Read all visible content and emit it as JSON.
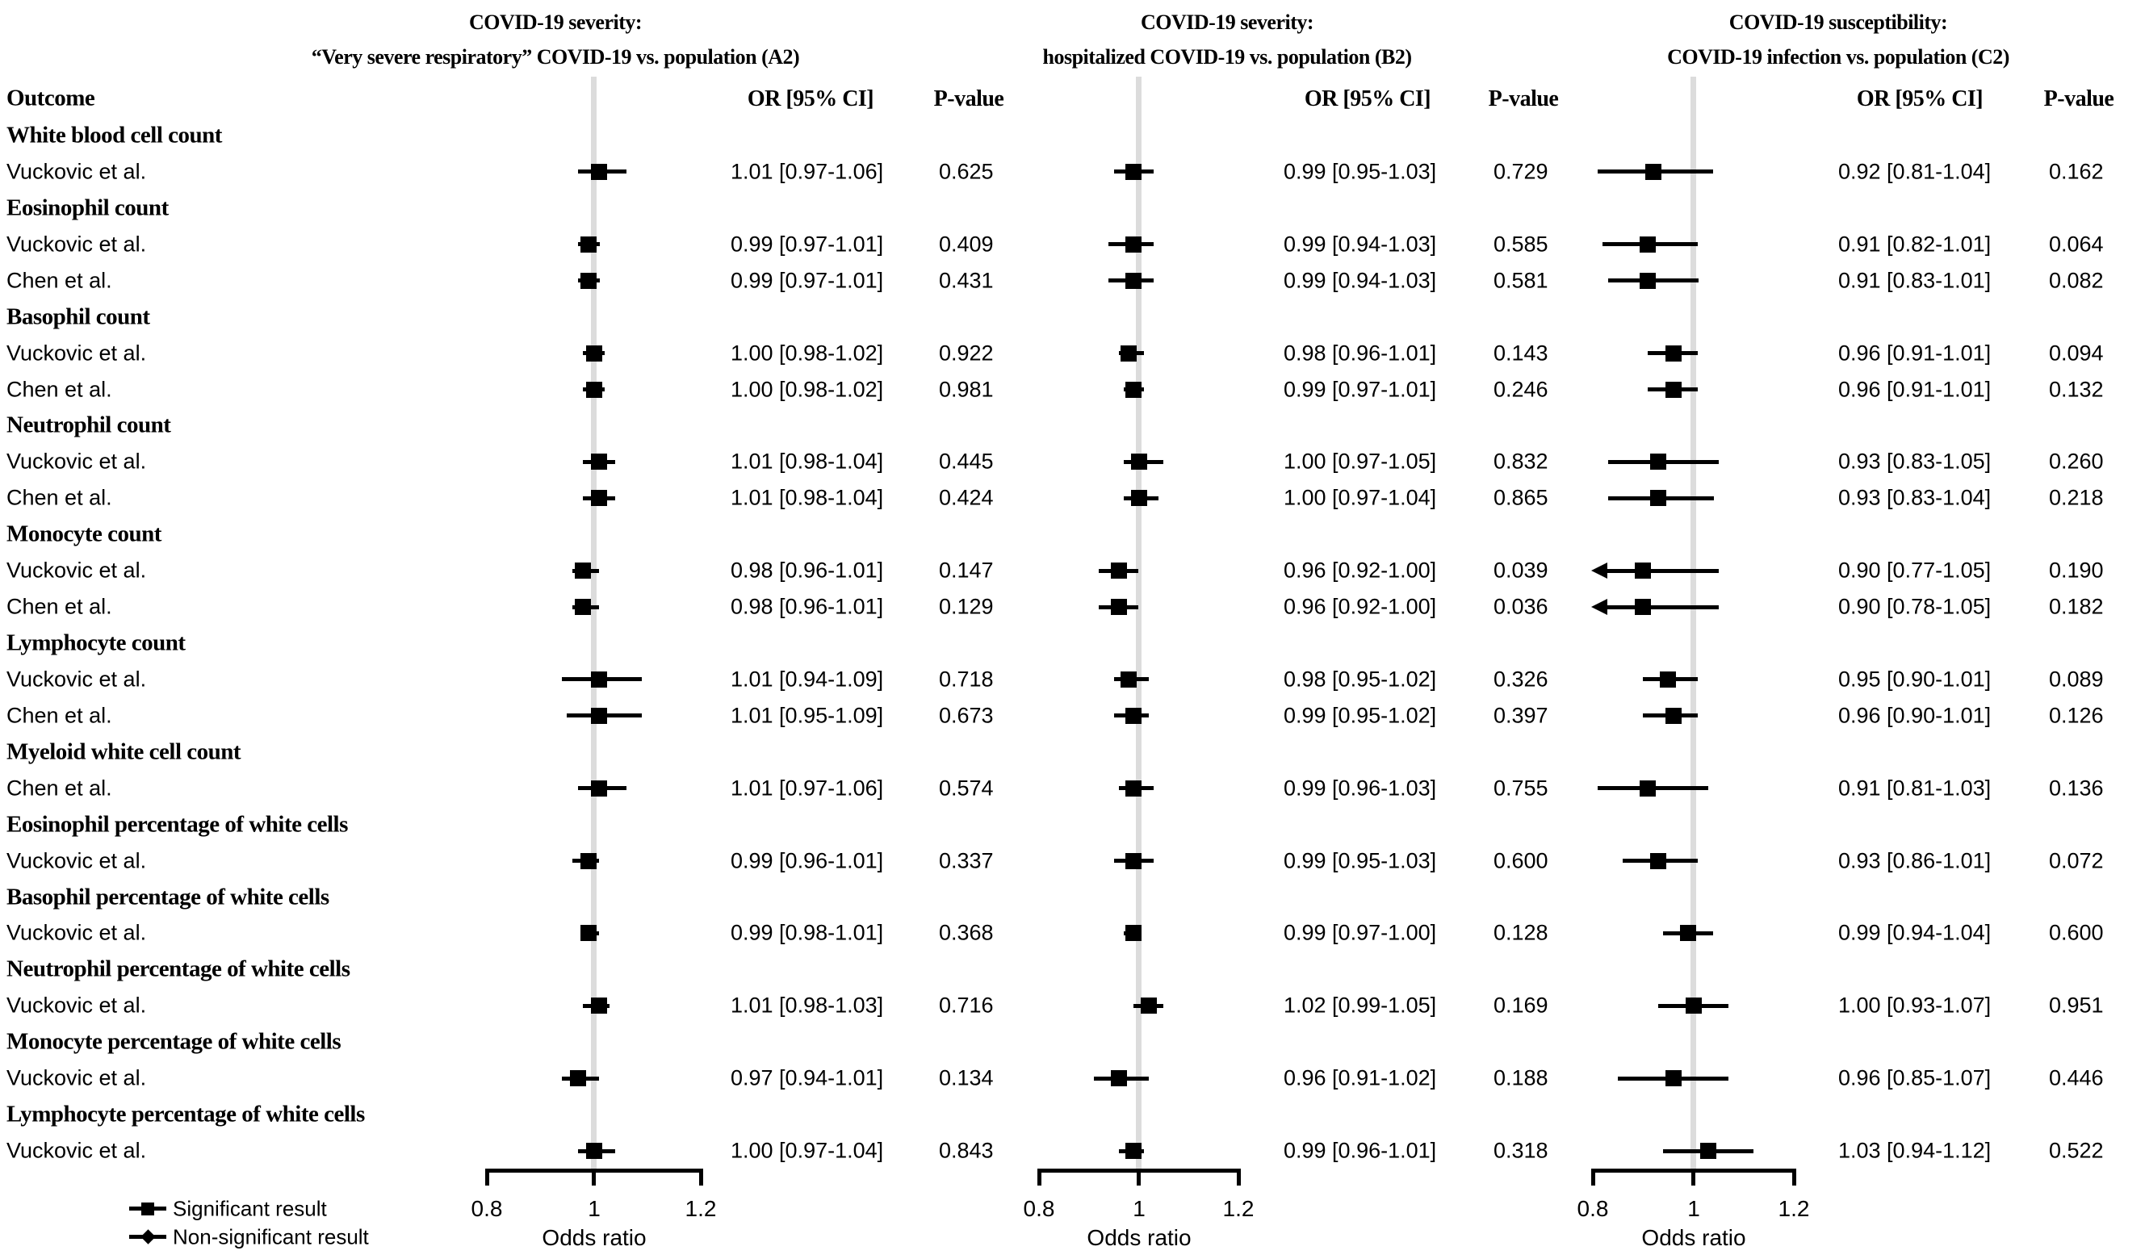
{
  "chart_data": {
    "type": "forest",
    "outcome_header": "Outcome",
    "or_header": "OR [95% CI]",
    "p_header": "P-value",
    "axis": {
      "label": "Odds ratio",
      "ticks": [
        "0.8",
        "1",
        "1.2"
      ],
      "range": [
        0.8,
        1.2
      ]
    },
    "colors": {
      "marker": "#000000",
      "reference_line": "#dcdcdc",
      "text": "#000000",
      "background": "#ffffff"
    },
    "legend": [
      {
        "marker": "square",
        "label": "Significant result"
      },
      {
        "marker": "diamond",
        "label": "Non-significant result"
      }
    ],
    "panels": [
      {
        "title1": "COVID-19 severity:",
        "title2": "“Very severe respiratory” COVID-19 vs. population (A2)"
      },
      {
        "title1": "COVID-19 severity:",
        "title2": "hospitalized COVID-19 vs. population (B2)"
      },
      {
        "title1": "COVID-19 susceptibility:",
        "title2": "COVID-19 infection vs. population (C2)"
      }
    ],
    "outcomes": [
      {
        "group": "White blood cell count",
        "studies": [
          {
            "study": "Vuckovic et al.",
            "results": [
              {
                "or_ci": "1.01 [0.97-1.06]",
                "p": "0.625",
                "est": 1.01,
                "lo": 0.97,
                "hi": 1.06
              },
              {
                "or_ci": "0.99 [0.95-1.03]",
                "p": "0.729",
                "est": 0.99,
                "lo": 0.95,
                "hi": 1.03
              },
              {
                "or_ci": "0.92 [0.81-1.04]",
                "p": "0.162",
                "est": 0.92,
                "lo": 0.81,
                "hi": 1.04
              }
            ]
          }
        ]
      },
      {
        "group": "Eosinophil count",
        "studies": [
          {
            "study": "Vuckovic et al.",
            "results": [
              {
                "or_ci": "0.99 [0.97-1.01]",
                "p": "0.409",
                "est": 0.99,
                "lo": 0.97,
                "hi": 1.01
              },
              {
                "or_ci": "0.99 [0.94-1.03]",
                "p": "0.585",
                "est": 0.99,
                "lo": 0.94,
                "hi": 1.03
              },
              {
                "or_ci": "0.91 [0.82-1.01]",
                "p": "0.064",
                "est": 0.91,
                "lo": 0.82,
                "hi": 1.01
              }
            ]
          },
          {
            "study": "Chen et al.",
            "results": [
              {
                "or_ci": "0.99 [0.97-1.01]",
                "p": "0.431",
                "est": 0.99,
                "lo": 0.97,
                "hi": 1.01
              },
              {
                "or_ci": "0.99 [0.94-1.03]",
                "p": "0.581",
                "est": 0.99,
                "lo": 0.94,
                "hi": 1.03
              },
              {
                "or_ci": "0.91 [0.83-1.01]",
                "p": "0.082",
                "est": 0.91,
                "lo": 0.83,
                "hi": 1.01
              }
            ]
          }
        ]
      },
      {
        "group": "Basophil count",
        "studies": [
          {
            "study": "Vuckovic et al.",
            "results": [
              {
                "or_ci": "1.00 [0.98-1.02]",
                "p": "0.922",
                "est": 1.0,
                "lo": 0.98,
                "hi": 1.02
              },
              {
                "or_ci": "0.98 [0.96-1.01]",
                "p": "0.143",
                "est": 0.98,
                "lo": 0.96,
                "hi": 1.01
              },
              {
                "or_ci": "0.96 [0.91-1.01]",
                "p": "0.094",
                "est": 0.96,
                "lo": 0.91,
                "hi": 1.01
              }
            ]
          },
          {
            "study": "Chen et al.",
            "results": [
              {
                "or_ci": "1.00 [0.98-1.02]",
                "p": "0.981",
                "est": 1.0,
                "lo": 0.98,
                "hi": 1.02
              },
              {
                "or_ci": "0.99 [0.97-1.01]",
                "p": "0.246",
                "est": 0.99,
                "lo": 0.97,
                "hi": 1.01
              },
              {
                "or_ci": "0.96 [0.91-1.01]",
                "p": "0.132",
                "est": 0.96,
                "lo": 0.91,
                "hi": 1.01
              }
            ]
          }
        ]
      },
      {
        "group": "Neutrophil count",
        "studies": [
          {
            "study": "Vuckovic et al.",
            "results": [
              {
                "or_ci": "1.01 [0.98-1.04]",
                "p": "0.445",
                "est": 1.01,
                "lo": 0.98,
                "hi": 1.04
              },
              {
                "or_ci": "1.00 [0.97-1.05]",
                "p": "0.832",
                "est": 1.0,
                "lo": 0.97,
                "hi": 1.05
              },
              {
                "or_ci": "0.93 [0.83-1.05]",
                "p": "0.260",
                "est": 0.93,
                "lo": 0.83,
                "hi": 1.05
              }
            ]
          },
          {
            "study": "Chen et al.",
            "results": [
              {
                "or_ci": "1.01 [0.98-1.04]",
                "p": "0.424",
                "est": 1.01,
                "lo": 0.98,
                "hi": 1.04
              },
              {
                "or_ci": "1.00 [0.97-1.04]",
                "p": "0.865",
                "est": 1.0,
                "lo": 0.97,
                "hi": 1.04
              },
              {
                "or_ci": "0.93 [0.83-1.04]",
                "p": "0.218",
                "est": 0.93,
                "lo": 0.83,
                "hi": 1.04
              }
            ]
          }
        ]
      },
      {
        "group": "Monocyte count",
        "studies": [
          {
            "study": "Vuckovic et al.",
            "results": [
              {
                "or_ci": "0.98 [0.96-1.01]",
                "p": "0.147",
                "est": 0.98,
                "lo": 0.96,
                "hi": 1.01
              },
              {
                "or_ci": "0.96 [0.92-1.00]",
                "p": "0.039",
                "est": 0.96,
                "lo": 0.92,
                "hi": 1.0
              },
              {
                "or_ci": "0.90 [0.77-1.05]",
                "p": "0.190",
                "est": 0.9,
                "lo": 0.77,
                "hi": 1.05
              }
            ]
          },
          {
            "study": "Chen et al.",
            "results": [
              {
                "or_ci": "0.98 [0.96-1.01]",
                "p": "0.129",
                "est": 0.98,
                "lo": 0.96,
                "hi": 1.01
              },
              {
                "or_ci": "0.96 [0.92-1.00]",
                "p": "0.036",
                "est": 0.96,
                "lo": 0.92,
                "hi": 1.0
              },
              {
                "or_ci": "0.90 [0.78-1.05]",
                "p": "0.182",
                "est": 0.9,
                "lo": 0.78,
                "hi": 1.05
              }
            ]
          }
        ]
      },
      {
        "group": "Lymphocyte count",
        "studies": [
          {
            "study": "Vuckovic et al.",
            "results": [
              {
                "or_ci": "1.01 [0.94-1.09]",
                "p": "0.718",
                "est": 1.01,
                "lo": 0.94,
                "hi": 1.09
              },
              {
                "or_ci": "0.98 [0.95-1.02]",
                "p": "0.326",
                "est": 0.98,
                "lo": 0.95,
                "hi": 1.02
              },
              {
                "or_ci": "0.95 [0.90-1.01]",
                "p": "0.089",
                "est": 0.95,
                "lo": 0.9,
                "hi": 1.01
              }
            ]
          },
          {
            "study": "Chen et al.",
            "results": [
              {
                "or_ci": "1.01 [0.95-1.09]",
                "p": "0.673",
                "est": 1.01,
                "lo": 0.95,
                "hi": 1.09
              },
              {
                "or_ci": "0.99 [0.95-1.02]",
                "p": "0.397",
                "est": 0.99,
                "lo": 0.95,
                "hi": 1.02
              },
              {
                "or_ci": "0.96 [0.90-1.01]",
                "p": "0.126",
                "est": 0.96,
                "lo": 0.9,
                "hi": 1.01
              }
            ]
          }
        ]
      },
      {
        "group": "Myeloid white cell count",
        "studies": [
          {
            "study": "Chen et al.",
            "results": [
              {
                "or_ci": "1.01 [0.97-1.06]",
                "p": "0.574",
                "est": 1.01,
                "lo": 0.97,
                "hi": 1.06
              },
              {
                "or_ci": "0.99 [0.96-1.03]",
                "p": "0.755",
                "est": 0.99,
                "lo": 0.96,
                "hi": 1.03
              },
              {
                "or_ci": "0.91 [0.81-1.03]",
                "p": "0.136",
                "est": 0.91,
                "lo": 0.81,
                "hi": 1.03
              }
            ]
          }
        ]
      },
      {
        "group": "Eosinophil percentage of white cells",
        "studies": [
          {
            "study": "Vuckovic et al.",
            "results": [
              {
                "or_ci": "0.99 [0.96-1.01]",
                "p": "0.337",
                "est": 0.99,
                "lo": 0.96,
                "hi": 1.01
              },
              {
                "or_ci": "0.99 [0.95-1.03]",
                "p": "0.600",
                "est": 0.99,
                "lo": 0.95,
                "hi": 1.03
              },
              {
                "or_ci": "0.93 [0.86-1.01]",
                "p": "0.072",
                "est": 0.93,
                "lo": 0.86,
                "hi": 1.01
              }
            ]
          }
        ]
      },
      {
        "group": "Basophil percentage of white cells",
        "studies": [
          {
            "study": "Vuckovic et al.",
            "results": [
              {
                "or_ci": "0.99 [0.98-1.01]",
                "p": "0.368",
                "est": 0.99,
                "lo": 0.98,
                "hi": 1.01
              },
              {
                "or_ci": "0.99 [0.97-1.00]",
                "p": "0.128",
                "est": 0.99,
                "lo": 0.97,
                "hi": 1.0
              },
              {
                "or_ci": "0.99 [0.94-1.04]",
                "p": "0.600",
                "est": 0.99,
                "lo": 0.94,
                "hi": 1.04
              }
            ]
          }
        ]
      },
      {
        "group": "Neutrophil percentage of white cells",
        "studies": [
          {
            "study": "Vuckovic et al.",
            "results": [
              {
                "or_ci": "1.01 [0.98-1.03]",
                "p": "0.716",
                "est": 1.01,
                "lo": 0.98,
                "hi": 1.03
              },
              {
                "or_ci": "1.02 [0.99-1.05]",
                "p": "0.169",
                "est": 1.02,
                "lo": 0.99,
                "hi": 1.05
              },
              {
                "or_ci": "1.00 [0.93-1.07]",
                "p": "0.951",
                "est": 1.0,
                "lo": 0.93,
                "hi": 1.07
              }
            ]
          }
        ]
      },
      {
        "group": "Monocyte percentage of white cells",
        "studies": [
          {
            "study": "Vuckovic et al.",
            "results": [
              {
                "or_ci": "0.97 [0.94-1.01]",
                "p": "0.134",
                "est": 0.97,
                "lo": 0.94,
                "hi": 1.01
              },
              {
                "or_ci": "0.96 [0.91-1.02]",
                "p": "0.188",
                "est": 0.96,
                "lo": 0.91,
                "hi": 1.02
              },
              {
                "or_ci": "0.96 [0.85-1.07]",
                "p": "0.446",
                "est": 0.96,
                "lo": 0.85,
                "hi": 1.07
              }
            ]
          }
        ]
      },
      {
        "group": "Lymphocyte percentage of white cells",
        "studies": [
          {
            "study": "Vuckovic et al.",
            "results": [
              {
                "or_ci": "1.00 [0.97-1.04]",
                "p": "0.843",
                "est": 1.0,
                "lo": 0.97,
                "hi": 1.04
              },
              {
                "or_ci": "0.99 [0.96-1.01]",
                "p": "0.318",
                "est": 0.99,
                "lo": 0.96,
                "hi": 1.01
              },
              {
                "or_ci": "1.03 [0.94-1.12]",
                "p": "0.522",
                "est": 1.03,
                "lo": 0.94,
                "hi": 1.12
              }
            ]
          }
        ]
      }
    ]
  }
}
